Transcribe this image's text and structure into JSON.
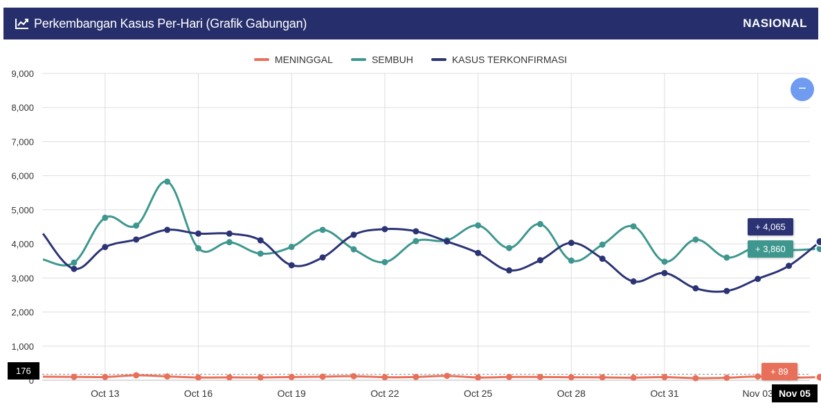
{
  "header": {
    "title": "Perkembangan Kasus Per-Hari (Grafik Gabungan)",
    "region": "NASIONAL",
    "color": "#262f6b"
  },
  "legend": [
    {
      "label": "MENINGGAL",
      "color": "#e8705a"
    },
    {
      "label": "SEMBUH",
      "color": "#3e978e"
    },
    {
      "label": "KASUS TERKONFIRMASI",
      "color": "#2b3374"
    }
  ],
  "zoom_button": {
    "icon": "minus-icon",
    "glyph": "−",
    "color": "#6f9bf0"
  },
  "crosshair": {
    "x_label": "Nov 05",
    "y_label": "176"
  },
  "tooltips": {
    "terkonfirmasi": "+ 4,065",
    "sembuh": "+ 3,860",
    "meninggal": "+ 89"
  },
  "chart_data": {
    "type": "line",
    "x": [
      "Oct 11",
      "Oct 12",
      "Oct 13",
      "Oct 14",
      "Oct 15",
      "Oct 16",
      "Oct 17",
      "Oct 18",
      "Oct 19",
      "Oct 20",
      "Oct 21",
      "Oct 22",
      "Oct 23",
      "Oct 24",
      "Oct 25",
      "Oct 26",
      "Oct 27",
      "Oct 28",
      "Oct 29",
      "Oct 30",
      "Oct 31",
      "Nov 01",
      "Nov 02",
      "Nov 03",
      "Nov 04",
      "Nov 05"
    ],
    "x_tick_labels": [
      "Oct 13",
      "Oct 16",
      "Oct 19",
      "Oct 22",
      "Oct 25",
      "Oct 28",
      "Oct 31",
      "Nov 03",
      "Nov 05"
    ],
    "y_ticks": [
      "0",
      "1,000",
      "2,000",
      "3,000",
      "4,000",
      "5,000",
      "6,000",
      "7,000",
      "8,000",
      "9,000"
    ],
    "ylim": [
      0,
      9000
    ],
    "grid": true,
    "legend_position": "top-center",
    "series": [
      {
        "name": "MENINGGAL",
        "color": "#e8705a",
        "values": [
          105,
          98,
          95,
          144,
          111,
          80,
          84,
          81,
          95,
          105,
          118,
          88,
          95,
          128,
          80,
          96,
          95,
          87,
          85,
          75,
          92,
          60,
          72,
          110,
          78,
          89
        ]
      },
      {
        "name": "SEMBUH",
        "color": "#3e978e",
        "values": [
          3540,
          3450,
          4766,
          4536,
          5826,
          3870,
          4050,
          3713,
          3910,
          4410,
          3840,
          3464,
          4081,
          4104,
          4541,
          3879,
          4580,
          3509,
          3978,
          4513,
          3477,
          4125,
          3598,
          3923,
          3820,
          3860
        ]
      },
      {
        "name": "KASUS TERKONFIRMASI",
        "color": "#2b3374",
        "values": [
          4300,
          3267,
          3906,
          4127,
          4411,
          4301,
          4301,
          4105,
          3373,
          3602,
          4267,
          4432,
          4369,
          4070,
          3732,
          3222,
          3520,
          4029,
          3565,
          2897,
          3143,
          2696,
          2618,
          2973,
          3356,
          4065
        ]
      }
    ]
  }
}
